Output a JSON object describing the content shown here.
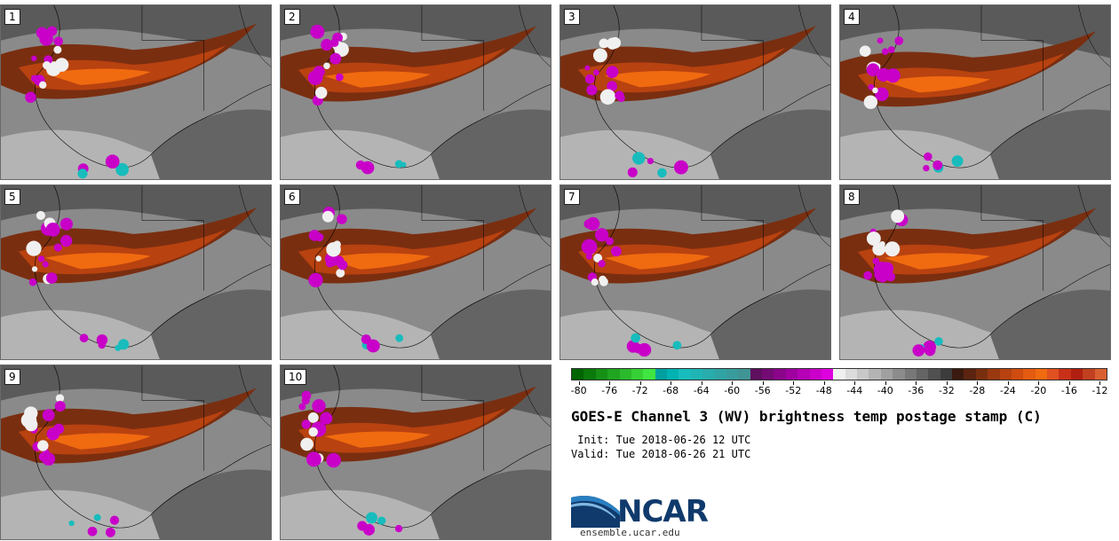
{
  "panels": [
    {
      "label": "1"
    },
    {
      "label": "2"
    },
    {
      "label": "3"
    },
    {
      "label": "4"
    },
    {
      "label": "5"
    },
    {
      "label": "6"
    },
    {
      "label": "7"
    },
    {
      "label": "8"
    },
    {
      "label": "9"
    },
    {
      "label": "10"
    }
  ],
  "colorbar": {
    "ticks": [
      "-80",
      "-76",
      "-72",
      "-68",
      "-64",
      "-60",
      "-56",
      "-52",
      "-48",
      "-44",
      "-40",
      "-36",
      "-32",
      "-28",
      "-24",
      "-20",
      "-16",
      "-12"
    ],
    "tick_min": -80,
    "tick_max": -12,
    "range": [
      -81,
      -11
    ],
    "colors": [
      "#006400",
      "#0a7a0a",
      "#159015",
      "#20a520",
      "#2bba2b",
      "#36d036",
      "#41e541",
      "#00a0a0",
      "#00b2b2",
      "#18bcbc",
      "#20b4b4",
      "#28acac",
      "#30a4a4",
      "#389c9c",
      "#409494",
      "#5e0f5e",
      "#740a74",
      "#8a058a",
      "#a000a0",
      "#b500b5",
      "#ca00ca",
      "#df00df",
      "#f0f0f0",
      "#dcdcdc",
      "#c8c8c8",
      "#b4b4b4",
      "#a0a0a0",
      "#8c8c8c",
      "#787878",
      "#646464",
      "#505050",
      "#3c3c3c",
      "#3a1a10",
      "#5a2410",
      "#7a2e10",
      "#9a3810",
      "#b84210",
      "#d04c10",
      "#e45a10",
      "#f06a10",
      "#e05020",
      "#c83018",
      "#b02010",
      "#c04020",
      "#d86030"
    ]
  },
  "title": "GOES-E Channel 3 (WV) brightness temp postage stamp (C)",
  "init": " Init: Tue 2018-06-26 12 UTC",
  "valid": "Valid: Tue 2018-06-26 21 UTC",
  "logo": {
    "wordmark": "NCAR",
    "url": "ensemble.ucar.edu"
  }
}
